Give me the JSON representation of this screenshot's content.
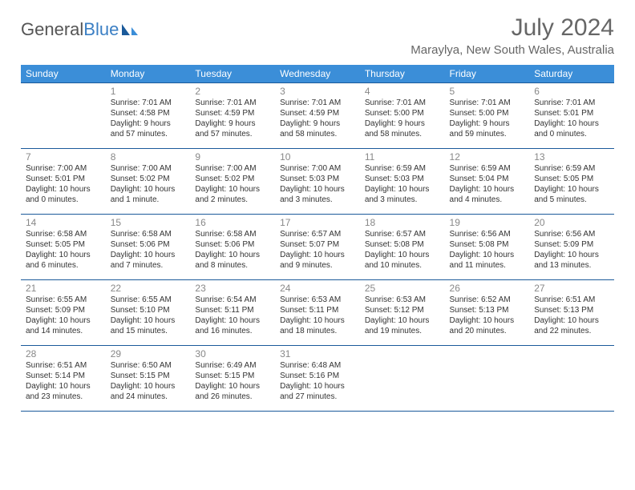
{
  "brand": {
    "part1": "General",
    "part2": "Blue"
  },
  "header": {
    "title": "July 2024",
    "subtitle": "Maraylya, New South Wales, Australia"
  },
  "colors": {
    "header_bg": "#3b8ed8",
    "header_border": "#1b5a9a",
    "brand_blue": "#3b7fc4",
    "text_gray": "#666666",
    "daynum_gray": "#888888"
  },
  "days_of_week": [
    "Sunday",
    "Monday",
    "Tuesday",
    "Wednesday",
    "Thursday",
    "Friday",
    "Saturday"
  ],
  "weeks": [
    [
      null,
      {
        "n": "1",
        "sunrise": "Sunrise: 7:01 AM",
        "sunset": "Sunset: 4:58 PM",
        "day1": "Daylight: 9 hours",
        "day2": "and 57 minutes."
      },
      {
        "n": "2",
        "sunrise": "Sunrise: 7:01 AM",
        "sunset": "Sunset: 4:59 PM",
        "day1": "Daylight: 9 hours",
        "day2": "and 57 minutes."
      },
      {
        "n": "3",
        "sunrise": "Sunrise: 7:01 AM",
        "sunset": "Sunset: 4:59 PM",
        "day1": "Daylight: 9 hours",
        "day2": "and 58 minutes."
      },
      {
        "n": "4",
        "sunrise": "Sunrise: 7:01 AM",
        "sunset": "Sunset: 5:00 PM",
        "day1": "Daylight: 9 hours",
        "day2": "and 58 minutes."
      },
      {
        "n": "5",
        "sunrise": "Sunrise: 7:01 AM",
        "sunset": "Sunset: 5:00 PM",
        "day1": "Daylight: 9 hours",
        "day2": "and 59 minutes."
      },
      {
        "n": "6",
        "sunrise": "Sunrise: 7:01 AM",
        "sunset": "Sunset: 5:01 PM",
        "day1": "Daylight: 10 hours",
        "day2": "and 0 minutes."
      }
    ],
    [
      {
        "n": "7",
        "sunrise": "Sunrise: 7:00 AM",
        "sunset": "Sunset: 5:01 PM",
        "day1": "Daylight: 10 hours",
        "day2": "and 0 minutes."
      },
      {
        "n": "8",
        "sunrise": "Sunrise: 7:00 AM",
        "sunset": "Sunset: 5:02 PM",
        "day1": "Daylight: 10 hours",
        "day2": "and 1 minute."
      },
      {
        "n": "9",
        "sunrise": "Sunrise: 7:00 AM",
        "sunset": "Sunset: 5:02 PM",
        "day1": "Daylight: 10 hours",
        "day2": "and 2 minutes."
      },
      {
        "n": "10",
        "sunrise": "Sunrise: 7:00 AM",
        "sunset": "Sunset: 5:03 PM",
        "day1": "Daylight: 10 hours",
        "day2": "and 3 minutes."
      },
      {
        "n": "11",
        "sunrise": "Sunrise: 6:59 AM",
        "sunset": "Sunset: 5:03 PM",
        "day1": "Daylight: 10 hours",
        "day2": "and 3 minutes."
      },
      {
        "n": "12",
        "sunrise": "Sunrise: 6:59 AM",
        "sunset": "Sunset: 5:04 PM",
        "day1": "Daylight: 10 hours",
        "day2": "and 4 minutes."
      },
      {
        "n": "13",
        "sunrise": "Sunrise: 6:59 AM",
        "sunset": "Sunset: 5:05 PM",
        "day1": "Daylight: 10 hours",
        "day2": "and 5 minutes."
      }
    ],
    [
      {
        "n": "14",
        "sunrise": "Sunrise: 6:58 AM",
        "sunset": "Sunset: 5:05 PM",
        "day1": "Daylight: 10 hours",
        "day2": "and 6 minutes."
      },
      {
        "n": "15",
        "sunrise": "Sunrise: 6:58 AM",
        "sunset": "Sunset: 5:06 PM",
        "day1": "Daylight: 10 hours",
        "day2": "and 7 minutes."
      },
      {
        "n": "16",
        "sunrise": "Sunrise: 6:58 AM",
        "sunset": "Sunset: 5:06 PM",
        "day1": "Daylight: 10 hours",
        "day2": "and 8 minutes."
      },
      {
        "n": "17",
        "sunrise": "Sunrise: 6:57 AM",
        "sunset": "Sunset: 5:07 PM",
        "day1": "Daylight: 10 hours",
        "day2": "and 9 minutes."
      },
      {
        "n": "18",
        "sunrise": "Sunrise: 6:57 AM",
        "sunset": "Sunset: 5:08 PM",
        "day1": "Daylight: 10 hours",
        "day2": "and 10 minutes."
      },
      {
        "n": "19",
        "sunrise": "Sunrise: 6:56 AM",
        "sunset": "Sunset: 5:08 PM",
        "day1": "Daylight: 10 hours",
        "day2": "and 11 minutes."
      },
      {
        "n": "20",
        "sunrise": "Sunrise: 6:56 AM",
        "sunset": "Sunset: 5:09 PM",
        "day1": "Daylight: 10 hours",
        "day2": "and 13 minutes."
      }
    ],
    [
      {
        "n": "21",
        "sunrise": "Sunrise: 6:55 AM",
        "sunset": "Sunset: 5:09 PM",
        "day1": "Daylight: 10 hours",
        "day2": "and 14 minutes."
      },
      {
        "n": "22",
        "sunrise": "Sunrise: 6:55 AM",
        "sunset": "Sunset: 5:10 PM",
        "day1": "Daylight: 10 hours",
        "day2": "and 15 minutes."
      },
      {
        "n": "23",
        "sunrise": "Sunrise: 6:54 AM",
        "sunset": "Sunset: 5:11 PM",
        "day1": "Daylight: 10 hours",
        "day2": "and 16 minutes."
      },
      {
        "n": "24",
        "sunrise": "Sunrise: 6:53 AM",
        "sunset": "Sunset: 5:11 PM",
        "day1": "Daylight: 10 hours",
        "day2": "and 18 minutes."
      },
      {
        "n": "25",
        "sunrise": "Sunrise: 6:53 AM",
        "sunset": "Sunset: 5:12 PM",
        "day1": "Daylight: 10 hours",
        "day2": "and 19 minutes."
      },
      {
        "n": "26",
        "sunrise": "Sunrise: 6:52 AM",
        "sunset": "Sunset: 5:13 PM",
        "day1": "Daylight: 10 hours",
        "day2": "and 20 minutes."
      },
      {
        "n": "27",
        "sunrise": "Sunrise: 6:51 AM",
        "sunset": "Sunset: 5:13 PM",
        "day1": "Daylight: 10 hours",
        "day2": "and 22 minutes."
      }
    ],
    [
      {
        "n": "28",
        "sunrise": "Sunrise: 6:51 AM",
        "sunset": "Sunset: 5:14 PM",
        "day1": "Daylight: 10 hours",
        "day2": "and 23 minutes."
      },
      {
        "n": "29",
        "sunrise": "Sunrise: 6:50 AM",
        "sunset": "Sunset: 5:15 PM",
        "day1": "Daylight: 10 hours",
        "day2": "and 24 minutes."
      },
      {
        "n": "30",
        "sunrise": "Sunrise: 6:49 AM",
        "sunset": "Sunset: 5:15 PM",
        "day1": "Daylight: 10 hours",
        "day2": "and 26 minutes."
      },
      {
        "n": "31",
        "sunrise": "Sunrise: 6:48 AM",
        "sunset": "Sunset: 5:16 PM",
        "day1": "Daylight: 10 hours",
        "day2": "and 27 minutes."
      },
      null,
      null,
      null
    ]
  ]
}
